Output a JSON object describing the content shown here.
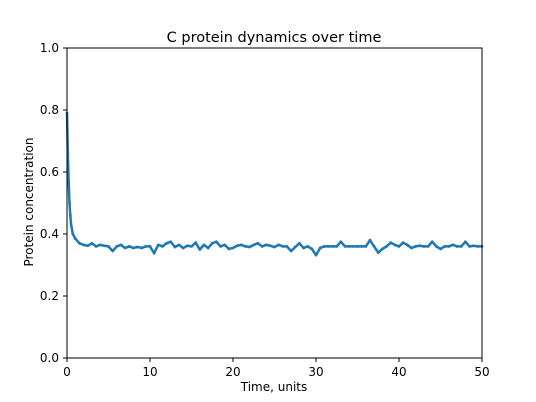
{
  "chart_data": {
    "type": "line",
    "title": "C protein dynamics over time",
    "xlabel": "Time, units",
    "ylabel": "Protein concentration",
    "xlim": [
      0,
      50
    ],
    "ylim": [
      0.0,
      1.0
    ],
    "xticks": [
      0,
      10,
      20,
      30,
      40,
      50
    ],
    "xtick_labels": [
      "0",
      "10",
      "20",
      "30",
      "40",
      "50"
    ],
    "yticks": [
      0.0,
      0.2,
      0.4,
      0.6,
      0.8,
      1.0
    ],
    "ytick_labels": [
      "0.0",
      "0.2",
      "0.4",
      "0.6",
      "0.8",
      "1.0"
    ],
    "grid": false,
    "line_color": "#1f77b4",
    "series": [
      {
        "x": [
          0,
          0.1,
          0.2,
          0.3,
          0.4,
          0.5,
          0.7,
          1.0,
          1.5,
          2.0,
          2.5,
          3.0,
          3.5,
          4.0,
          4.5,
          5.0,
          5.5,
          6.0,
          6.5,
          7.0,
          7.5,
          8.0,
          8.5,
          9.0,
          9.5,
          10.0,
          10.5,
          11.0,
          11.5,
          12.0,
          12.5,
          13.0,
          13.5,
          14.0,
          14.5,
          15.0,
          15.5,
          16.0,
          16.5,
          17.0,
          17.5,
          18.0,
          18.5,
          19.0,
          19.5,
          20.0,
          20.5,
          21.0,
          21.5,
          22.0,
          22.5,
          23.0,
          23.5,
          24.0,
          24.5,
          25.0,
          25.5,
          26.0,
          26.5,
          27.0,
          27.5,
          28.0,
          28.5,
          29.0,
          29.5,
          30.0,
          30.5,
          31.0,
          31.5,
          32.0,
          32.5,
          33.0,
          33.5,
          34.0,
          34.5,
          35.0,
          35.5,
          36.0,
          36.5,
          37.0,
          37.5,
          38.0,
          38.5,
          39.0,
          39.5,
          40.0,
          40.5,
          41.0,
          41.5,
          42.0,
          42.5,
          43.0,
          43.5,
          44.0,
          44.5,
          45.0,
          45.5,
          46.0,
          46.5,
          47.0,
          47.5,
          48.0,
          48.5,
          49.0,
          49.5,
          50.0
        ],
        "values": [
          0.79,
          0.66,
          0.57,
          0.5,
          0.46,
          0.43,
          0.4,
          0.385,
          0.37,
          0.365,
          0.362,
          0.37,
          0.36,
          0.365,
          0.362,
          0.36,
          0.345,
          0.36,
          0.365,
          0.355,
          0.36,
          0.355,
          0.358,
          0.355,
          0.36,
          0.36,
          0.338,
          0.365,
          0.36,
          0.37,
          0.375,
          0.358,
          0.365,
          0.355,
          0.362,
          0.36,
          0.372,
          0.35,
          0.365,
          0.355,
          0.37,
          0.375,
          0.36,
          0.365,
          0.352,
          0.355,
          0.362,
          0.365,
          0.36,
          0.358,
          0.365,
          0.37,
          0.36,
          0.365,
          0.362,
          0.358,
          0.365,
          0.36,
          0.36,
          0.345,
          0.358,
          0.37,
          0.355,
          0.36,
          0.352,
          0.332,
          0.355,
          0.36,
          0.36,
          0.36,
          0.36,
          0.375,
          0.36,
          0.36,
          0.36,
          0.36,
          0.36,
          0.36,
          0.38,
          0.36,
          0.34,
          0.352,
          0.36,
          0.372,
          0.365,
          0.36,
          0.372,
          0.365,
          0.355,
          0.36,
          0.362,
          0.36,
          0.36,
          0.375,
          0.36,
          0.352,
          0.36,
          0.36,
          0.365,
          0.36,
          0.36,
          0.375,
          0.36,
          0.362,
          0.36,
          0.36
        ]
      }
    ]
  }
}
